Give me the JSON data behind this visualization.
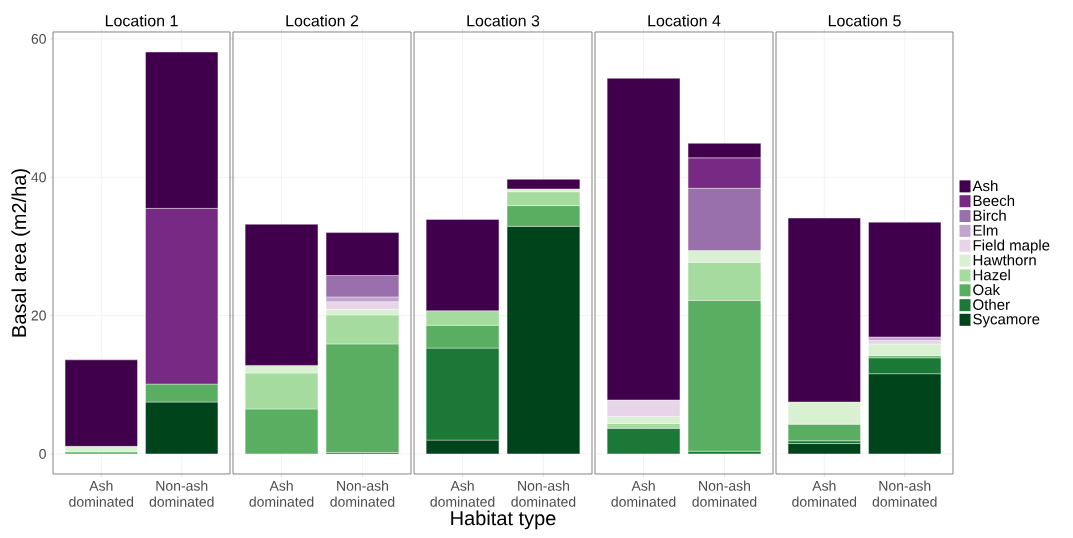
{
  "chart_data": [
    {
      "type": "bar",
      "stacked": true,
      "title": "Location 1",
      "ylabel": "Basal area (m2/ha)",
      "categories": [
        "Ash dominated",
        "Non-ash dominated"
      ],
      "ylim": [
        -2.9,
        61
      ],
      "yticks": [
        0,
        20,
        40,
        60
      ],
      "grid": true,
      "series": [
        {
          "color": "#00441b",
          "values": [
            null,
            7.5
          ]
        },
        {
          "color": "#1b7837",
          "values": [
            null,
            null
          ]
        },
        {
          "color": "#5aae61",
          "values": [
            0.3,
            2.6
          ]
        },
        {
          "color": "#a6dba0",
          "values": [
            null,
            null
          ]
        },
        {
          "color": "#d9f0d3",
          "values": [
            0.8,
            null
          ]
        },
        {
          "color": "#e7d4e8",
          "values": [
            null,
            null
          ]
        },
        {
          "color": "#c2a5cf",
          "values": [
            null,
            null
          ]
        },
        {
          "color": "#9970ab",
          "values": [
            null,
            null
          ]
        },
        {
          "color": "#762a83",
          "values": [
            null,
            25.4
          ]
        },
        {
          "color": "#40004b",
          "values": [
            12.5,
            22.6
          ]
        }
      ]
    },
    {
      "type": "bar",
      "stacked": true,
      "title": "Location 2",
      "categories": [
        "Ash dominated",
        "Non-ash dominated"
      ],
      "ylim": [
        -2.9,
        61
      ],
      "yticks": [
        0,
        20,
        40,
        60
      ],
      "grid": true,
      "tick_labels": "x",
      "series": [
        {
          "color": "#00441b",
          "values": [
            null,
            null
          ]
        },
        {
          "color": "#1b7837",
          "values": [
            null,
            0.2
          ]
        },
        {
          "color": "#5aae61",
          "values": [
            6.5,
            15.7
          ]
        },
        {
          "color": "#a6dba0",
          "values": [
            5.2,
            4.2
          ]
        },
        {
          "color": "#d9f0d3",
          "values": [
            1.1,
            0.8
          ]
        },
        {
          "color": "#e7d4e8",
          "values": [
            null,
            1.1
          ]
        },
        {
          "color": "#c2a5cf",
          "values": [
            null,
            0.7
          ]
        },
        {
          "color": "#9970ab",
          "values": [
            null,
            3.1
          ]
        },
        {
          "color": "#762a83",
          "values": [
            null,
            null
          ]
        },
        {
          "color": "#40004b",
          "values": [
            20.4,
            6.2
          ]
        }
      ]
    },
    {
      "type": "bar",
      "stacked": true,
      "title": "Location 3",
      "xlabel": "Habitat type",
      "categories": [
        "Ash dominated",
        "Non-ash dominated"
      ],
      "ylim": [
        -2.9,
        61
      ],
      "yticks": [
        0,
        20,
        40,
        60
      ],
      "grid": true,
      "tick_labels": "x",
      "series": [
        {
          "color": "#00441b",
          "values": [
            2.0,
            32.9
          ]
        },
        {
          "color": "#1b7837",
          "values": [
            13.3,
            null
          ]
        },
        {
          "color": "#5aae61",
          "values": [
            3.3,
            3.0
          ]
        },
        {
          "color": "#a6dba0",
          "values": [
            2.1,
            2.0
          ]
        },
        {
          "color": "#d9f0d3",
          "values": [
            null,
            0.4
          ]
        },
        {
          "color": "#e7d4e8",
          "values": [
            null,
            null
          ]
        },
        {
          "color": "#c2a5cf",
          "values": [
            null,
            null
          ]
        },
        {
          "color": "#9970ab",
          "values": [
            null,
            null
          ]
        },
        {
          "color": "#762a83",
          "values": [
            null,
            null
          ]
        },
        {
          "color": "#40004b",
          "values": [
            13.2,
            1.4
          ]
        }
      ]
    },
    {
      "type": "bar",
      "stacked": true,
      "title": "Location 4",
      "categories": [
        "Ash dominated",
        "Non-ash dominated"
      ],
      "ylim": [
        -2.9,
        61
      ],
      "yticks": [
        0,
        20,
        40,
        60
      ],
      "grid": true,
      "tick_labels": "x",
      "series": [
        {
          "color": "#00441b",
          "values": [
            null,
            null
          ]
        },
        {
          "color": "#1b7837",
          "values": [
            3.7,
            0.4
          ]
        },
        {
          "color": "#5aae61",
          "values": [
            null,
            21.8
          ]
        },
        {
          "color": "#a6dba0",
          "values": [
            0.7,
            5.5
          ]
        },
        {
          "color": "#d9f0d3",
          "values": [
            1.0,
            1.7
          ]
        },
        {
          "color": "#e7d4e8",
          "values": [
            2.4,
            null
          ]
        },
        {
          "color": "#c2a5cf",
          "values": [
            null,
            null
          ]
        },
        {
          "color": "#9970ab",
          "values": [
            null,
            9.0
          ]
        },
        {
          "color": "#762a83",
          "values": [
            null,
            4.4
          ]
        },
        {
          "color": "#40004b",
          "values": [
            46.5,
            2.1
          ]
        }
      ]
    },
    {
      "type": "bar",
      "stacked": true,
      "title": "Location 5",
      "categories": [
        "Ash dominated",
        "Non-ash dominated"
      ],
      "ylim": [
        -2.9,
        61
      ],
      "yticks": [
        0,
        20,
        40,
        60
      ],
      "grid": true,
      "tick_labels": "x",
      "legend": "right",
      "series": [
        {
          "name": "Sycamore",
          "color": "#00441b",
          "values": [
            1.5,
            11.6
          ]
        },
        {
          "name": "Other",
          "color": "#1b7837",
          "values": [
            0.4,
            2.3
          ]
        },
        {
          "name": "Oak",
          "color": "#5aae61",
          "values": [
            2.4,
            0.3
          ]
        },
        {
          "name": "Hazel",
          "color": "#a6dba0",
          "values": [
            null,
            null
          ]
        },
        {
          "name": "Hawthorn",
          "color": "#d9f0d3",
          "values": [
            3.2,
            1.7
          ]
        },
        {
          "name": "Field maple",
          "color": "#e7d4e8",
          "values": [
            null,
            0.5
          ]
        },
        {
          "name": "Elm",
          "color": "#c2a5cf",
          "values": [
            null,
            0.5
          ]
        },
        {
          "name": "Birch",
          "color": "#9970ab",
          "values": [
            null,
            null
          ]
        },
        {
          "name": "Beech",
          "color": "#762a83",
          "values": [
            null,
            null
          ]
        },
        {
          "name": "Ash",
          "color": "#40004b",
          "values": [
            26.6,
            16.6
          ]
        }
      ]
    }
  ]
}
